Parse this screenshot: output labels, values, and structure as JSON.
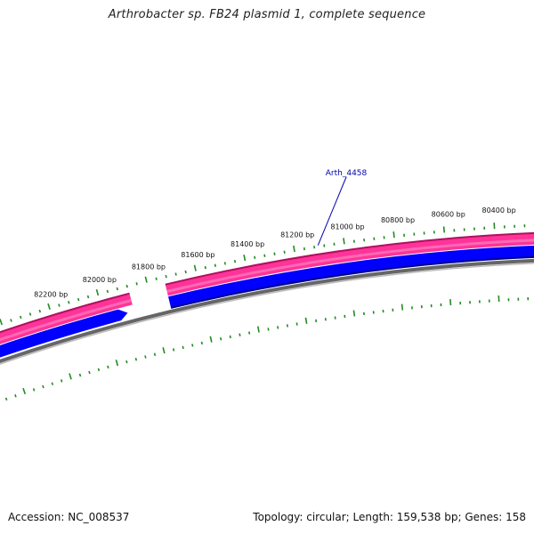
{
  "title": "Arthrobacter sp. FB24 plasmid 1, complete sequence",
  "footer": {
    "accession": "Accession: NC_008537",
    "summary": "Topology: circular; Length: 159,538 bp; Genes: 158"
  },
  "ruler": {
    "labels": [
      "82200 bp",
      "82000 bp",
      "81800 bp",
      "81600 bp",
      "81400 bp",
      "81200 bp",
      "81000 bp",
      "80800 bp",
      "80600 bp",
      "80400 bp"
    ]
  },
  "feature_label": "Arth_4458",
  "colors": {
    "forward_strand": "#ff3399",
    "forward_strand_dark": "#b0105e",
    "reverse_strand": "#0000ff",
    "reverse_strand_dark": "#00008c",
    "backbone": "#888888",
    "ticks": "#228b22",
    "label": "#0000b0"
  }
}
